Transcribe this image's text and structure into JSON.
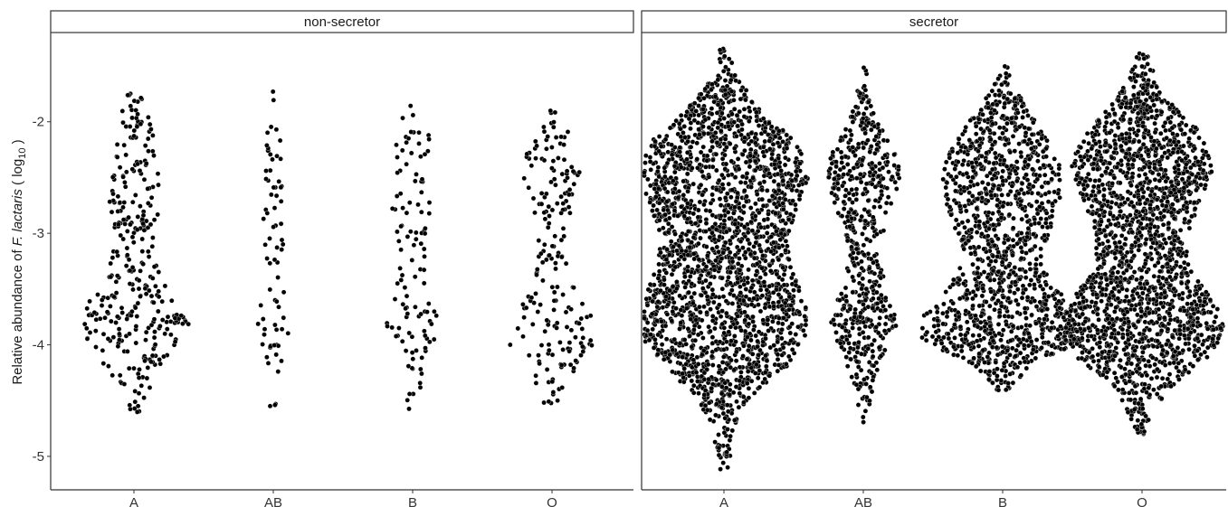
{
  "chart_data": {
    "type": "scatter",
    "subtype": "beeswarm",
    "title": "",
    "ylabel": {
      "prefix": "Relative abundance of ",
      "species": "F. lactaris",
      "suffix_open": " ( log",
      "subscript": "10",
      "suffix_close": " )"
    },
    "xlabel": "",
    "categories": [
      "A",
      "AB",
      "B",
      "O"
    ],
    "y_ticks": [
      -2,
      -3,
      -4,
      -5
    ],
    "y_tick_labels": [
      "-2",
      "-3",
      "-4",
      "-5"
    ],
    "ylim": [
      -5.3,
      -1.2
    ],
    "grid": false,
    "point_color": "#000000",
    "panels": [
      {
        "label": "non-secretor",
        "groups": [
          {
            "category": "A",
            "n": 330,
            "min": -4.63,
            "max": -1.72,
            "density": [
              [
                -4.63,
                0.1
              ],
              [
                -4.3,
                0.35
              ],
              [
                -4.0,
                0.8
              ],
              [
                -3.8,
                1.0
              ],
              [
                -3.6,
                0.85
              ],
              [
                -3.4,
                0.45
              ],
              [
                -3.1,
                0.4
              ],
              [
                -2.8,
                0.45
              ],
              [
                -2.6,
                0.45
              ],
              [
                -2.3,
                0.4
              ],
              [
                -2.0,
                0.3
              ],
              [
                -1.72,
                0.1
              ]
            ]
          },
          {
            "category": "AB",
            "n": 75,
            "min": -4.55,
            "max": -1.72,
            "density": [
              [
                -4.55,
                0.1
              ],
              [
                -4.2,
                0.2
              ],
              [
                -3.85,
                0.5
              ],
              [
                -3.6,
                0.35
              ],
              [
                -3.3,
                0.25
              ],
              [
                -3.0,
                0.3
              ],
              [
                -2.6,
                0.25
              ],
              [
                -2.3,
                0.3
              ],
              [
                -2.0,
                0.2
              ],
              [
                -1.72,
                0.1
              ]
            ]
          },
          {
            "category": "B",
            "n": 115,
            "min": -4.6,
            "max": -1.82,
            "density": [
              [
                -4.6,
                0.1
              ],
              [
                -4.2,
                0.3
              ],
              [
                -3.9,
                0.6
              ],
              [
                -3.7,
                0.55
              ],
              [
                -3.4,
                0.3
              ],
              [
                -3.1,
                0.3
              ],
              [
                -2.8,
                0.45
              ],
              [
                -2.5,
                0.4
              ],
              [
                -2.2,
                0.45
              ],
              [
                -1.82,
                0.1
              ]
            ]
          },
          {
            "category": "O",
            "n": 200,
            "min": -4.6,
            "max": -1.9,
            "density": [
              [
                -4.6,
                0.1
              ],
              [
                -4.3,
                0.35
              ],
              [
                -4.0,
                0.8
              ],
              [
                -3.8,
                0.9
              ],
              [
                -3.6,
                0.6
              ],
              [
                -3.3,
                0.3
              ],
              [
                -3.0,
                0.3
              ],
              [
                -2.7,
                0.45
              ],
              [
                -2.5,
                0.55
              ],
              [
                -2.3,
                0.5
              ],
              [
                -2.0,
                0.25
              ],
              [
                -1.9,
                0.1
              ]
            ]
          }
        ]
      },
      {
        "label": "secretor",
        "groups": [
          {
            "category": "A",
            "n": 2200,
            "min": -5.12,
            "max": -1.33,
            "density": [
              [
                -5.12,
                0.05
              ],
              [
                -4.7,
                0.15
              ],
              [
                -4.4,
                0.4
              ],
              [
                -4.2,
                0.75
              ],
              [
                -3.9,
                1.0
              ],
              [
                -3.7,
                1.0
              ],
              [
                -3.4,
                0.85
              ],
              [
                -3.1,
                0.75
              ],
              [
                -2.8,
                0.85
              ],
              [
                -2.5,
                1.0
              ],
              [
                -2.2,
                0.9
              ],
              [
                -1.9,
                0.45
              ],
              [
                -1.6,
                0.15
              ],
              [
                -1.33,
                0.05
              ]
            ]
          },
          {
            "category": "AB",
            "n": 600,
            "min": -4.74,
            "max": -1.44,
            "density": [
              [
                -4.74,
                0.05
              ],
              [
                -4.4,
                0.2
              ],
              [
                -4.1,
                0.45
              ],
              [
                -3.8,
                0.75
              ],
              [
                -3.5,
                0.5
              ],
              [
                -3.2,
                0.35
              ],
              [
                -2.9,
                0.5
              ],
              [
                -2.6,
                0.75
              ],
              [
                -2.4,
                0.85
              ],
              [
                -2.1,
                0.45
              ],
              [
                -1.8,
                0.15
              ],
              [
                -1.44,
                0.05
              ]
            ]
          },
          {
            "category": "B",
            "n": 1300,
            "min": -4.45,
            "max": -1.5,
            "density": [
              [
                -4.45,
                0.05
              ],
              [
                -4.2,
                0.3
              ],
              [
                -3.95,
                1.0
              ],
              [
                -3.75,
                0.95
              ],
              [
                -3.5,
                0.65
              ],
              [
                -3.2,
                0.45
              ],
              [
                -2.9,
                0.6
              ],
              [
                -2.6,
                0.75
              ],
              [
                -2.3,
                0.65
              ],
              [
                -2.0,
                0.4
              ],
              [
                -1.7,
                0.15
              ],
              [
                -1.5,
                0.05
              ]
            ]
          },
          {
            "category": "O",
            "n": 2000,
            "min": -4.8,
            "max": -1.37,
            "density": [
              [
                -4.8,
                0.05
              ],
              [
                -4.4,
                0.3
              ],
              [
                -4.1,
                0.8
              ],
              [
                -3.85,
                1.0
              ],
              [
                -3.6,
                0.85
              ],
              [
                -3.3,
                0.55
              ],
              [
                -3.0,
                0.55
              ],
              [
                -2.7,
                0.7
              ],
              [
                -2.4,
                0.85
              ],
              [
                -2.1,
                0.7
              ],
              [
                -1.8,
                0.3
              ],
              [
                -1.5,
                0.1
              ],
              [
                -1.37,
                0.05
              ]
            ]
          }
        ]
      }
    ]
  }
}
